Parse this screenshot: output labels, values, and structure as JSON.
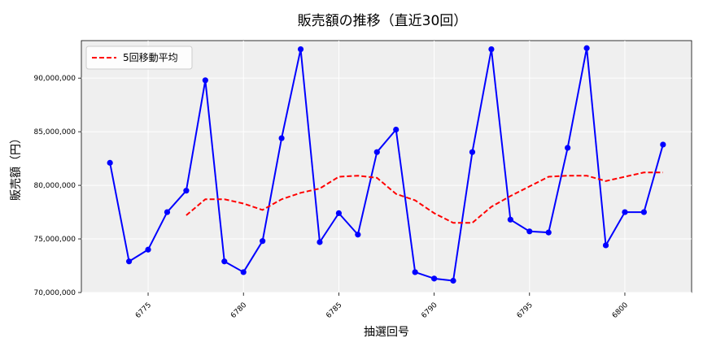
{
  "chart_data": {
    "type": "line",
    "title": "販売額の推移（直近30回）",
    "xlabel": "抽選回号",
    "ylabel": "販売額（円）",
    "x": [
      6773,
      6774,
      6775,
      6776,
      6777,
      6778,
      6779,
      6780,
      6781,
      6782,
      6783,
      6784,
      6785,
      6786,
      6787,
      6788,
      6789,
      6790,
      6791,
      6792,
      6793,
      6794,
      6795,
      6796,
      6797,
      6798,
      6799,
      6800,
      6801,
      6802
    ],
    "series": [
      {
        "name": "",
        "color": "#0000ff",
        "style": "solid-markers",
        "values": [
          82100000,
          72900000,
          74000000,
          77500000,
          79500000,
          89800000,
          72900000,
          71900000,
          74800000,
          84400000,
          92700000,
          74700000,
          77400000,
          75400000,
          83100000,
          85200000,
          71900000,
          71300000,
          71100000,
          83100000,
          92700000,
          76800000,
          75700000,
          75600000,
          83500000,
          92800000,
          74400000,
          77500000,
          77500000,
          83800000
        ]
      },
      {
        "name": "5回移動平均",
        "color": "#ff0000",
        "style": "dashed",
        "values": [
          null,
          null,
          null,
          null,
          77200000,
          78700000,
          78700000,
          78300000,
          77700000,
          78700000,
          79300000,
          79700000,
          80800000,
          80900000,
          80700000,
          79200000,
          78600000,
          77400000,
          76500000,
          76500000,
          78000000,
          79000000,
          79900000,
          80800000,
          80900000,
          80900000,
          80400000,
          80800000,
          81200000,
          81200000
        ]
      }
    ],
    "xticks": [
      6775,
      6780,
      6785,
      6790,
      6795,
      6800
    ],
    "yticks": [
      70000000,
      75000000,
      80000000,
      85000000,
      90000000
    ],
    "ytick_labels": [
      "70,000,000",
      "75,000,000",
      "80,000,000",
      "85,000,000",
      "90,000,000"
    ],
    "xlim": [
      6771.5,
      6803.5
    ],
    "ylim": [
      70000000,
      93500000
    ],
    "grid": true,
    "legend_position": "top-left"
  }
}
